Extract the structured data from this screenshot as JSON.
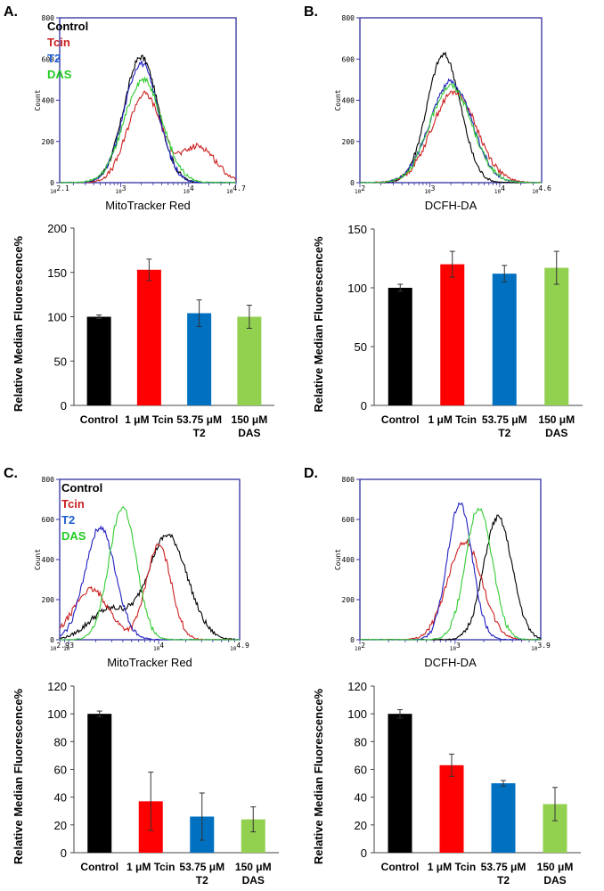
{
  "figure": {
    "panels": [
      {
        "label": "A.",
        "hist_xlabel": "MitoTracker Red",
        "hist_ylabel": "Count",
        "hist_yticks": [
          "0",
          "200",
          "400",
          "600",
          "800"
        ],
        "hist_xticks": [
          {
            "base": "10",
            "exp": "2.1"
          },
          {
            "base": "10",
            "exp": "3"
          },
          {
            "base": "10",
            "exp": "4"
          },
          {
            "base": "10",
            "exp": "4.7"
          }
        ],
        "legend": [
          "Control",
          "Tcin",
          "T2",
          "DAS"
        ],
        "bar_ylabel": "Relative Median Fluorescence%",
        "bar_yticks": [
          "0",
          "50",
          "100",
          "150",
          "200"
        ],
        "bar_ymax": 200,
        "bar_categories": [
          [
            "Control"
          ],
          [
            "1 μM Tcin"
          ],
          [
            "53.75 μM",
            "T2"
          ],
          [
            "150 μM",
            "DAS"
          ]
        ]
      },
      {
        "label": "B.",
        "hist_xlabel": "DCFH-DA",
        "hist_ylabel": "Count",
        "hist_yticks": [
          "0",
          "200",
          "400",
          "600",
          "800"
        ],
        "hist_xticks": [
          {
            "base": "10",
            "exp": "2"
          },
          {
            "base": "10",
            "exp": "3"
          },
          {
            "base": "10",
            "exp": "4"
          },
          {
            "base": "10",
            "exp": "4.6"
          }
        ],
        "legend": [],
        "bar_ylabel": "Relative Median Fluorescence%",
        "bar_yticks": [
          "0",
          "50",
          "100",
          "150"
        ],
        "bar_ymax": 150,
        "bar_categories": [
          [
            "Control"
          ],
          [
            "1 μM Tcin"
          ],
          [
            "53.75 μM",
            "T2"
          ],
          [
            "150 μM",
            "DAS"
          ]
        ]
      },
      {
        "label": "C.",
        "hist_xlabel": "MitoTracker Red",
        "hist_ylabel": "Count",
        "hist_yticks": [
          "0",
          "200",
          "400",
          "600",
          "800"
        ],
        "hist_xticks": [
          {
            "base": "10",
            "exp": "2.9"
          },
          {
            "base": "10",
            "exp": "3"
          },
          {
            "base": "10",
            "exp": "4"
          },
          {
            "base": "10",
            "exp": "4.9"
          }
        ],
        "legend": [
          "Control",
          "Tcin",
          "T2",
          "DAS"
        ],
        "bar_ylabel": "Relative Median Fluorescence%",
        "bar_yticks": [
          "0",
          "20",
          "40",
          "60",
          "80",
          "100",
          "120"
        ],
        "bar_ymax": 120,
        "bar_categories": [
          [
            "Control"
          ],
          [
            "1 μM Tcin"
          ],
          [
            "53.75 μM",
            "T2"
          ],
          [
            "150 μM",
            "DAS"
          ]
        ]
      },
      {
        "label": "D.",
        "hist_xlabel": "DCFH-DA",
        "hist_ylabel": "Count",
        "hist_yticks": [
          "0",
          "200",
          "400",
          "600",
          "800"
        ],
        "hist_xticks": [
          {
            "base": "10",
            "exp": "2"
          },
          {
            "base": "10",
            "exp": "3"
          },
          {
            "base": "10",
            "exp": "3.9"
          }
        ],
        "legend": [],
        "bar_ylabel": "Relative Median Fluorescence%",
        "bar_yticks": [
          "0",
          "20",
          "40",
          "60",
          "80",
          "100",
          "120"
        ],
        "bar_ymax": 120,
        "bar_categories": [
          [
            "Control"
          ],
          [
            "1 μM Tcin"
          ],
          [
            "53.75 μM",
            "T2"
          ],
          [
            "150 μM",
            "DAS"
          ]
        ]
      }
    ]
  },
  "colors": {
    "Control": "#000000",
    "Tcin": "#ff0000",
    "T2": "#0070c0",
    "DAS": "#92d050",
    "legend_T2": "#1f5fd0",
    "legend_DAS": "#22cc22",
    "hist_T2": "#2020c0",
    "hist_DAS": "#33cc33",
    "hist_Tcin": "#cc2020",
    "axis_frame": "#3030a0"
  },
  "chart_data": [
    {
      "type": "bar",
      "panel": "A",
      "title": "MitoTracker Red",
      "ylabel": "Relative Median Fluorescence%",
      "ylim": [
        0,
        200
      ],
      "categories": [
        "Control",
        "1 μM Tcin",
        "53.75 μM T2",
        "150 μM DAS"
      ],
      "values": [
        100,
        153,
        104,
        100
      ],
      "errors": [
        2,
        12,
        15,
        13
      ]
    },
    {
      "type": "bar",
      "panel": "B",
      "title": "DCFH-DA",
      "ylabel": "Relative Median Fluorescence%",
      "ylim": [
        0,
        150
      ],
      "categories": [
        "Control",
        "1 μM Tcin",
        "53.75 μM T2",
        "150 μM DAS"
      ],
      "values": [
        100,
        120,
        112,
        117
      ],
      "errors": [
        3,
        11,
        7,
        14
      ]
    },
    {
      "type": "bar",
      "panel": "C",
      "title": "MitoTracker Red",
      "ylabel": "Relative Median Fluorescence%",
      "ylim": [
        0,
        120
      ],
      "categories": [
        "Control",
        "1 μM Tcin",
        "53.75 μM T2",
        "150 μM DAS"
      ],
      "values": [
        100,
        37,
        26,
        24
      ],
      "errors": [
        2,
        21,
        17,
        9
      ]
    },
    {
      "type": "bar",
      "panel": "D",
      "title": "DCFH-DA",
      "ylabel": "Relative Median Fluorescence%",
      "ylim": [
        0,
        120
      ],
      "categories": [
        "Control",
        "1 μM Tcin",
        "53.75 μM T2",
        "150 μM DAS"
      ],
      "values": [
        100,
        63,
        50,
        35
      ],
      "errors": [
        3,
        8,
        2,
        12
      ]
    },
    {
      "type": "line",
      "panel": "A-histogram",
      "xlabel": "MitoTracker Red",
      "ylabel": "Count",
      "xscale": "log10",
      "xlim": [
        2.1,
        4.7
      ],
      "ylim": [
        0,
        800
      ],
      "series": [
        {
          "name": "Control",
          "peaks": [
            {
              "mu": 3.3,
              "sigma": 0.25,
              "height": 610
            }
          ]
        },
        {
          "name": "Tcin",
          "peaks": [
            {
              "mu": 3.35,
              "sigma": 0.25,
              "height": 430
            },
            {
              "mu": 4.15,
              "sigma": 0.25,
              "height": 175
            }
          ]
        },
        {
          "name": "T2",
          "peaks": [
            {
              "mu": 3.3,
              "sigma": 0.25,
              "height": 580
            }
          ]
        },
        {
          "name": "DAS",
          "peaks": [
            {
              "mu": 3.33,
              "sigma": 0.28,
              "height": 500
            }
          ]
        }
      ]
    },
    {
      "type": "line",
      "panel": "B-histogram",
      "xlabel": "DCFH-DA",
      "ylabel": "Count",
      "xscale": "log10",
      "xlim": [
        2,
        4.6
      ],
      "ylim": [
        0,
        800
      ],
      "series": [
        {
          "name": "Control",
          "peaks": [
            {
              "mu": 3.2,
              "sigma": 0.24,
              "height": 620
            }
          ]
        },
        {
          "name": "Tcin",
          "peaks": [
            {
              "mu": 3.35,
              "sigma": 0.32,
              "height": 440
            }
          ]
        },
        {
          "name": "T2",
          "peaks": [
            {
              "mu": 3.3,
              "sigma": 0.3,
              "height": 490
            }
          ]
        },
        {
          "name": "DAS",
          "peaks": [
            {
              "mu": 3.3,
              "sigma": 0.3,
              "height": 470
            }
          ]
        }
      ]
    },
    {
      "type": "line",
      "panel": "C-histogram",
      "xlabel": "MitoTracker Red",
      "ylabel": "Count",
      "xscale": "log10",
      "xlim": [
        2.9,
        4.9
      ],
      "ylim": [
        0,
        800
      ],
      "series": [
        {
          "name": "Control",
          "peaks": [
            {
              "mu": 4.1,
              "sigma": 0.22,
              "height": 520
            },
            {
              "mu": 3.45,
              "sigma": 0.22,
              "height": 150
            }
          ]
        },
        {
          "name": "Tcin",
          "peaks": [
            {
              "mu": 3.25,
              "sigma": 0.2,
              "height": 250
            },
            {
              "mu": 4.0,
              "sigma": 0.14,
              "height": 470
            }
          ]
        },
        {
          "name": "T2",
          "peaks": [
            {
              "mu": 3.35,
              "sigma": 0.17,
              "height": 560
            }
          ]
        },
        {
          "name": "DAS",
          "peaks": [
            {
              "mu": 3.6,
              "sigma": 0.15,
              "height": 660
            }
          ]
        }
      ]
    },
    {
      "type": "line",
      "panel": "D-histogram",
      "xlabel": "DCFH-DA",
      "ylabel": "Count",
      "xscale": "log10",
      "xlim": [
        2,
        3.9
      ],
      "ylim": [
        0,
        800
      ],
      "series": [
        {
          "name": "Control",
          "peaks": [
            {
              "mu": 3.45,
              "sigma": 0.15,
              "height": 610
            }
          ]
        },
        {
          "name": "Tcin",
          "peaks": [
            {
              "mu": 3.1,
              "sigma": 0.18,
              "height": 490
            }
          ]
        },
        {
          "name": "T2",
          "peaks": [
            {
              "mu": 3.05,
              "sigma": 0.13,
              "height": 680
            }
          ]
        },
        {
          "name": "DAS",
          "peaks": [
            {
              "mu": 3.25,
              "sigma": 0.14,
              "height": 660
            }
          ]
        }
      ]
    }
  ]
}
